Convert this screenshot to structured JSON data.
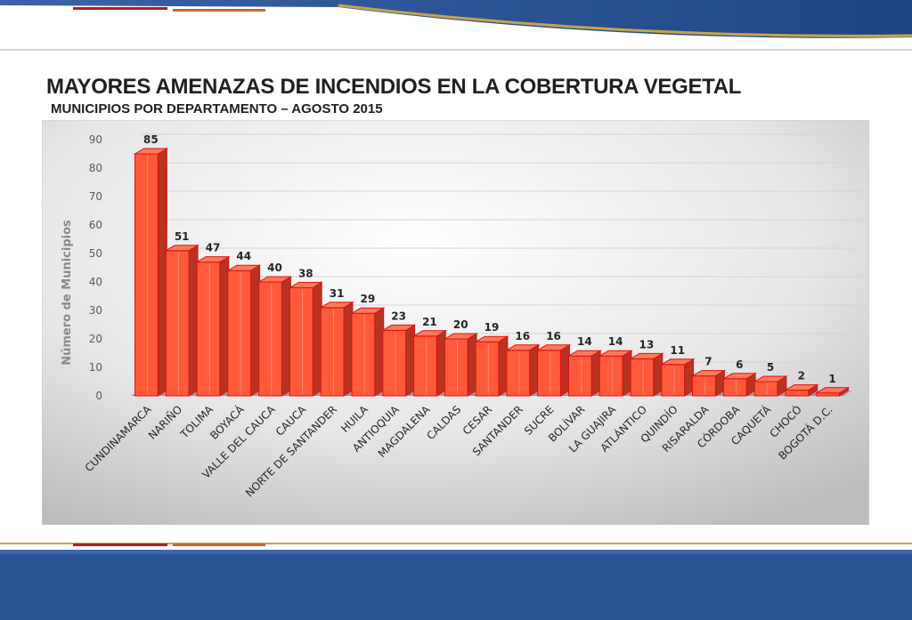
{
  "header": {
    "title": "MAYORES AMENAZAS DE INCENDIOS EN LA COBERTURA VEGETAL",
    "subtitle": "MUNICIPIOS POR DEPARTAMENTO – AGOSTO 2015"
  },
  "colors": {
    "bar_front": "#ff5a3c",
    "bar_side": "#b83322",
    "bar_edge": "#e01010",
    "banner_blue": "#2c5596",
    "accent_red": "#b01c2e",
    "accent_orange": "#c8652a",
    "accent_gold": "#c9a447"
  },
  "chart_data": {
    "type": "bar",
    "title": "",
    "xlabel": "",
    "ylabel": "Número de Municipios",
    "ylim": [
      0,
      90
    ],
    "yticks": [
      0,
      10,
      20,
      30,
      40,
      50,
      60,
      70,
      80,
      90
    ],
    "grid": true,
    "categories": [
      "CUNDINAMARCA",
      "NARIÑO",
      "TOLIMA",
      "BOYACÁ",
      "VALLE DEL CAUCA",
      "CAUCA",
      "NORTE DE SANTANDER",
      "HUILA",
      "ANTIOQUIA",
      "MAGDALENA",
      "CALDAS",
      "CESAR",
      "SANTANDER",
      "SUCRE",
      "BOLÍVAR",
      "LA GUAJIRA",
      "ATLÁNTICO",
      "QUINDÍO",
      "RISARALDA",
      "CÓRDOBA",
      "CAQUETÁ",
      "CHOCÓ",
      "BOGOTÁ D.C."
    ],
    "values": [
      85,
      51,
      47,
      44,
      40,
      38,
      31,
      29,
      23,
      21,
      20,
      19,
      16,
      16,
      14,
      14,
      13,
      11,
      7,
      6,
      5,
      2,
      1
    ],
    "data_labels": [
      "85",
      "51",
      "47",
      "44",
      "40",
      "38",
      "31",
      "29",
      "23",
      "21",
      "20",
      "19",
      "16",
      "16",
      "14",
      "14",
      "13",
      "11",
      "7",
      "6",
      "5",
      "2",
      "1"
    ]
  }
}
